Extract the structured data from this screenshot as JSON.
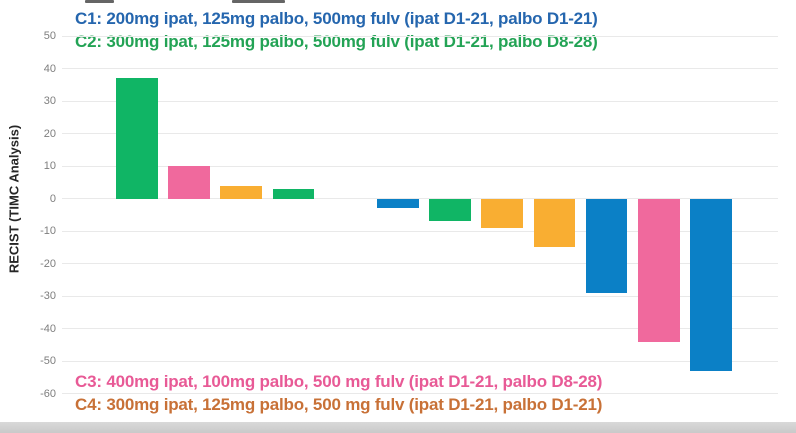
{
  "chart_data": {
    "type": "bar",
    "subtype": "waterfall",
    "title": "",
    "xlabel": "",
    "ylabel": "RECIST (TIMC Analysis)",
    "ylim": [
      -60,
      50
    ],
    "yticks": [
      50,
      40,
      30,
      20,
      10,
      0,
      -10,
      -20,
      -30,
      -40,
      -50,
      -60
    ],
    "grid": true,
    "legend_position": "top-and-bottom",
    "bar_colors": {
      "C1": "#0b80c6",
      "C2": "#10b565",
      "C3": "#f0699d",
      "C4": "#f9ae32"
    },
    "bars": [
      {
        "value": 37,
        "cohort": "C2"
      },
      {
        "value": 10,
        "cohort": "C3"
      },
      {
        "value": 4,
        "cohort": "C4"
      },
      {
        "value": 3,
        "cohort": "C2"
      },
      {
        "value": 0,
        "cohort": null
      },
      {
        "value": -3,
        "cohort": "C1"
      },
      {
        "value": -7,
        "cohort": "C2"
      },
      {
        "value": -9,
        "cohort": "C4"
      },
      {
        "value": -15,
        "cohort": "C4"
      },
      {
        "value": -29,
        "cohort": "C1"
      },
      {
        "value": -44,
        "cohort": "C3"
      },
      {
        "value": -53,
        "cohort": "C1"
      }
    ],
    "legend_top": [
      {
        "id": "C1",
        "label": "C1: 200mg ipat, 125mg palbo, 500mg fulv (ipat D1-21, palbo D1-21)",
        "color": "#2566ae"
      },
      {
        "id": "C2",
        "label": "C2: 300mg ipat, 125mg palbo, 500mg fulv (ipat D1-21, palbo D8-28)",
        "color": "#23a355"
      }
    ],
    "legend_bottom": [
      {
        "id": "C3",
        "label": "C3: 400mg ipat, 100mg palbo, 500 mg fulv (ipat D1-21, palbo D8-28)",
        "color": "#e85a96"
      },
      {
        "id": "C4",
        "label": "C4: 300mg ipat, 125mg palbo, 500 mg fulv (ipat D1-21, palbo D1-21)",
        "color": "#c87137"
      }
    ],
    "colors": {
      "gridline": "#e9e9e9",
      "tick_label": "#7e7e7e",
      "axis_title": "#262626"
    }
  }
}
